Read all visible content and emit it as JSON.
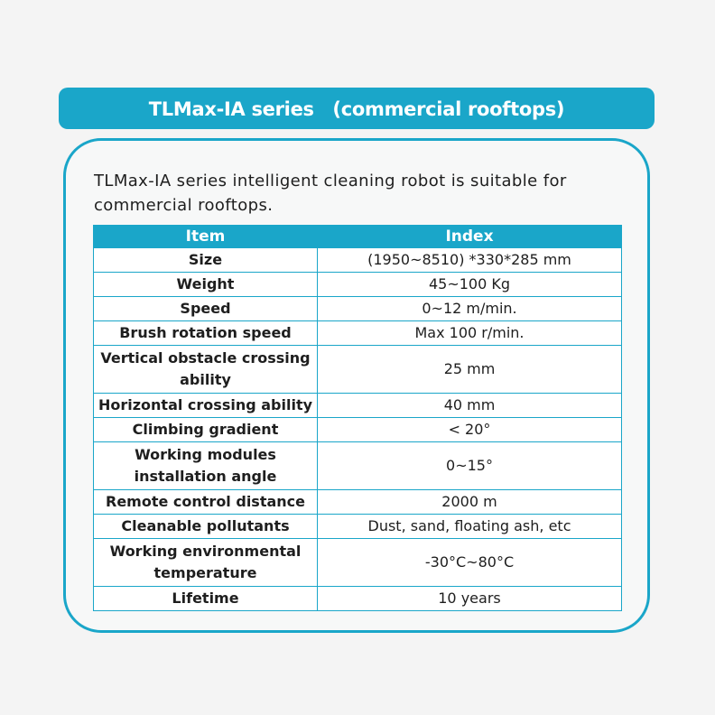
{
  "title": "TLMax-IA series　(commercial rooftops)",
  "intro": "TLMax-IA series intelligent cleaning robot is suitable for commercial rooftops.",
  "table": {
    "headers": [
      "Item",
      "Index"
    ],
    "rows": [
      {
        "item": "Size",
        "value": "(1950~8510)  *330*285 mm",
        "tall": false
      },
      {
        "item": "Weight",
        "value": "45~100 Kg",
        "tall": false
      },
      {
        "item": "Speed",
        "value": "0~12 m/min.",
        "tall": false
      },
      {
        "item": "Brush rotation speed",
        "value": "Max 100 r/min.",
        "tall": false
      },
      {
        "item": "Vertical obstacle crossing ability",
        "value": "25 mm",
        "tall": true
      },
      {
        "item": "Horizontal crossing ability",
        "value": "40 mm",
        "tall": false
      },
      {
        "item": "Climbing gradient",
        "value": "< 20°",
        "tall": false
      },
      {
        "item": "Working modules installation angle",
        "value": "0~15°",
        "tall": true
      },
      {
        "item": "Remote control distance",
        "value": "2000 m",
        "tall": false
      },
      {
        "item": "Cleanable pollutants",
        "value": "Dust, sand,  floating ash, etc",
        "tall": false
      },
      {
        "item": "Working environmental temperature",
        "value": "-30°C~80°C",
        "tall": true
      },
      {
        "item": "Lifetime",
        "value": "10 years",
        "tall": false
      }
    ]
  },
  "colors": {
    "accent": "#1aa6c9",
    "text": "#1e1e1e",
    "background": "#f4f4f4"
  }
}
